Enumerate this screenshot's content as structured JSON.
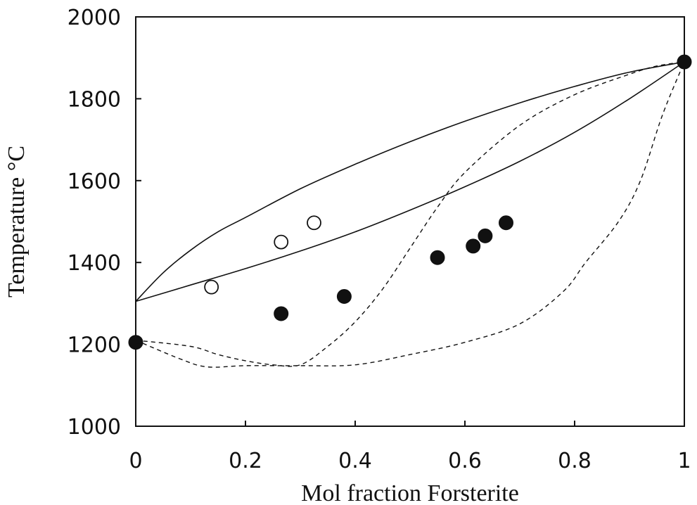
{
  "chart_data": {
    "type": "line",
    "xlabel": "Mol fraction Forsterite",
    "ylabel": "Temperature °C",
    "xlim": [
      0,
      1
    ],
    "ylim": [
      1000,
      2000
    ],
    "x_ticks": [
      0,
      0.2,
      0.4,
      0.6,
      0.8,
      1
    ],
    "x_tick_labels": [
      "0",
      "0.2",
      "0.4",
      "0.6",
      "0.8",
      "1"
    ],
    "y_ticks": [
      1000,
      1200,
      1400,
      1600,
      1800,
      2000
    ],
    "y_tick_labels": [
      "1000",
      "1200",
      "1400",
      "1600",
      "1800",
      "2000"
    ],
    "grid": false,
    "series": [
      {
        "style": "solid",
        "x": [
          0,
          0.05,
          0.1,
          0.15,
          0.2,
          0.3,
          0.4,
          0.5,
          0.6,
          0.7,
          0.8,
          0.9,
          1
        ],
        "y": [
          1305,
          1375,
          1430,
          1475,
          1510,
          1580,
          1640,
          1695,
          1745,
          1790,
          1830,
          1865,
          1890
        ]
      },
      {
        "style": "solid",
        "x": [
          0,
          0.1,
          0.2,
          0.3,
          0.4,
          0.5,
          0.6,
          0.7,
          0.8,
          0.9,
          1
        ],
        "y": [
          1305,
          1345,
          1385,
          1428,
          1475,
          1528,
          1585,
          1647,
          1718,
          1800,
          1890
        ]
      },
      {
        "style": "dashed",
        "x": [
          0,
          0.1,
          0.15,
          0.2,
          0.25,
          0.3,
          0.35,
          0.4,
          0.45,
          0.5,
          0.55,
          0.6,
          0.7,
          0.8,
          0.9,
          0.95,
          1
        ],
        "y": [
          1210,
          1195,
          1175,
          1160,
          1150,
          1150,
          1195,
          1255,
          1335,
          1435,
          1535,
          1620,
          1735,
          1810,
          1860,
          1880,
          1890
        ]
      },
      {
        "style": "dashed",
        "x": [
          0,
          0.08,
          0.13,
          0.2,
          0.3,
          0.4,
          0.5,
          0.6,
          0.7,
          0.78,
          0.82,
          0.88,
          0.92,
          0.96,
          1
        ],
        "y": [
          1210,
          1165,
          1145,
          1148,
          1148,
          1150,
          1175,
          1205,
          1250,
          1330,
          1400,
          1500,
          1600,
          1760,
          1890
        ]
      }
    ],
    "points_filled": {
      "x": [
        0,
        0.265,
        0.38,
        0.55,
        0.615,
        0.637,
        0.675,
        1
      ],
      "y": [
        1205,
        1275,
        1317,
        1412,
        1440,
        1465,
        1497,
        1890
      ]
    },
    "points_open": {
      "x": [
        0.138,
        0.265,
        0.325
      ],
      "y": [
        1340,
        1450,
        1497
      ]
    }
  }
}
